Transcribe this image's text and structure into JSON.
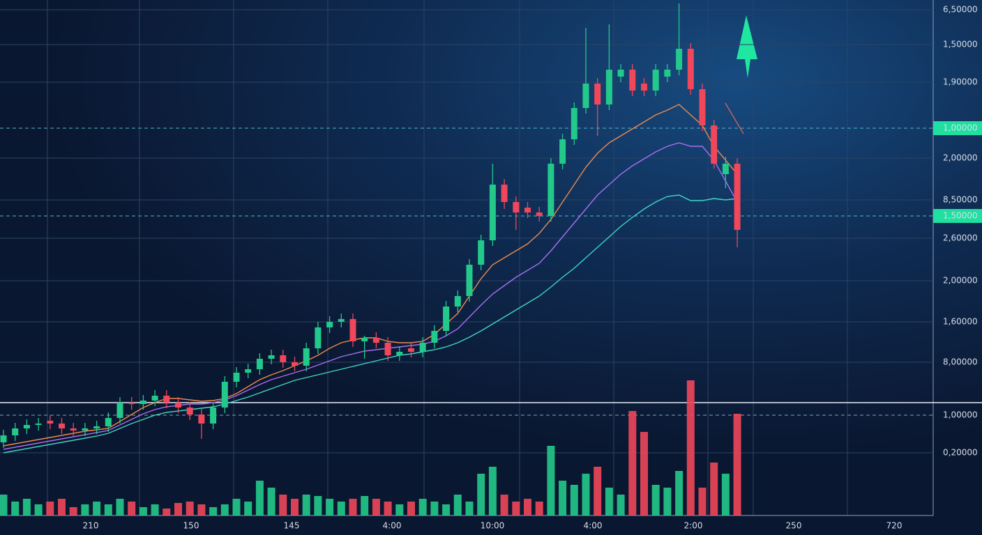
{
  "chart_data": [
    {
      "type": "candlestick",
      "up_color": "#22c98a",
      "down_color": "#f0475a",
      "ylim": [
        0,
        650
      ],
      "yticks": [
        {
          "value": 636,
          "label": "6,50000"
        },
        {
          "value": 586,
          "label": "1,50000"
        },
        {
          "value": 532,
          "label": "1,90000"
        },
        {
          "value": 466,
          "label": "1,00000",
          "highlight": true
        },
        {
          "value": 423,
          "label": "2,00000"
        },
        {
          "value": 363,
          "label": "8,50000"
        },
        {
          "value": 340,
          "label": "1,50000",
          "highlight": true
        },
        {
          "value": 308,
          "label": "2,60000"
        },
        {
          "value": 247,
          "label": "2,00000"
        },
        {
          "value": 188,
          "label": "1,60000"
        },
        {
          "value": 130,
          "label": "8,00000"
        }
      ],
      "x_labels": [
        "210",
        "150",
        "145",
        "4:00",
        "10:00",
        "4:00",
        "2:00",
        "250",
        "720"
      ],
      "grid": true,
      "open": [
        15,
        25,
        35,
        40,
        46,
        42,
        35,
        32,
        35,
        38,
        50,
        72,
        70,
        75,
        82,
        72,
        65,
        55,
        42,
        65,
        102,
        115,
        120,
        135,
        140,
        130,
        125,
        150,
        180,
        188,
        192,
        160,
        165,
        158,
        140,
        150,
        145,
        158,
        175,
        210,
        225,
        270,
        305,
        385,
        360,
        352,
        345,
        340,
        415,
        450,
        495,
        530,
        500,
        540,
        550,
        530,
        520,
        540,
        550,
        580,
        522,
        470,
        400,
        415
      ],
      "high": [
        33,
        43,
        48,
        50,
        54,
        50,
        43,
        43,
        46,
        58,
        80,
        80,
        83,
        90,
        90,
        80,
        73,
        63,
        73,
        110,
        123,
        128,
        143,
        148,
        148,
        138,
        158,
        188,
        196,
        200,
        200,
        168,
        173,
        166,
        153,
        158,
        166,
        183,
        218,
        233,
        278,
        313,
        415,
        393,
        368,
        360,
        353,
        423,
        458,
        503,
        610,
        538,
        615,
        558,
        558,
        538,
        558,
        558,
        645,
        588,
        530,
        478,
        425,
        423
      ],
      "low": [
        7,
        17,
        27,
        32,
        34,
        27,
        24,
        24,
        27,
        30,
        42,
        62,
        62,
        67,
        64,
        57,
        47,
        20,
        34,
        57,
        94,
        107,
        112,
        127,
        122,
        117,
        117,
        142,
        172,
        180,
        152,
        135,
        150,
        132,
        132,
        137,
        137,
        150,
        167,
        202,
        217,
        262,
        297,
        350,
        320,
        337,
        332,
        332,
        407,
        442,
        487,
        455,
        492,
        532,
        512,
        512,
        512,
        532,
        542,
        514,
        462,
        408,
        380,
        295
      ],
      "close": [
        25,
        35,
        40,
        42,
        42,
        35,
        32,
        35,
        38,
        50,
        72,
        70,
        75,
        82,
        72,
        65,
        55,
        42,
        65,
        102,
        115,
        120,
        135,
        140,
        130,
        125,
        150,
        180,
        188,
        192,
        160,
        165,
        158,
        140,
        145,
        145,
        158,
        175,
        210,
        225,
        270,
        305,
        385,
        360,
        345,
        345,
        340,
        415,
        450,
        495,
        530,
        500,
        550,
        550,
        520,
        520,
        550,
        550,
        580,
        522,
        470,
        415,
        415,
        320
      ],
      "series": [
        {
          "color": "#f08a4b",
          "values": [
            10,
            13,
            16,
            19,
            22,
            25,
            28,
            31,
            33,
            35,
            45,
            55,
            65,
            72,
            78,
            78,
            76,
            74,
            75,
            78,
            85,
            95,
            105,
            112,
            118,
            125,
            132,
            140,
            150,
            158,
            162,
            165,
            165,
            160,
            158,
            158,
            160,
            170,
            185,
            200,
            225,
            250,
            270,
            280,
            290,
            300,
            315,
            335,
            360,
            385,
            410,
            430,
            445,
            455,
            465,
            475,
            485,
            492,
            500,
            485,
            470,
            440,
            420,
            400
          ]
        },
        {
          "color": "#a86ff0",
          "values": [
            5,
            8,
            11,
            14,
            17,
            20,
            23,
            26,
            29,
            32,
            40,
            48,
            56,
            62,
            66,
            68,
            70,
            70,
            72,
            76,
            82,
            90,
            98,
            105,
            110,
            115,
            120,
            126,
            132,
            138,
            142,
            146,
            148,
            150,
            152,
            154,
            156,
            160,
            168,
            178,
            195,
            212,
            228,
            240,
            252,
            262,
            272,
            290,
            310,
            330,
            350,
            370,
            385,
            400,
            412,
            422,
            432,
            440,
            445,
            440,
            440,
            420,
            390,
            360
          ]
        },
        {
          "color": "#3fd6c4",
          "values": [
            0,
            3,
            6,
            9,
            12,
            15,
            18,
            21,
            24,
            28,
            35,
            42,
            48,
            54,
            58,
            60,
            62,
            64,
            66,
            70,
            75,
            80,
            86,
            92,
            98,
            104,
            108,
            112,
            116,
            120,
            124,
            128,
            132,
            136,
            140,
            142,
            145,
            148,
            152,
            158,
            166,
            175,
            185,
            195,
            205,
            215,
            225,
            238,
            252,
            265,
            280,
            295,
            310,
            325,
            338,
            350,
            360,
            368,
            370,
            362,
            362,
            365,
            363,
            365
          ]
        }
      ]
    },
    {
      "type": "bar",
      "ylim": [
        0,
        100
      ],
      "yticks": [
        {
          "value": 72,
          "label": "1,00000"
        },
        {
          "value": 45,
          "label": "0,20000"
        }
      ],
      "values": [
        15,
        10,
        12,
        8,
        10,
        12,
        6,
        8,
        10,
        8,
        12,
        10,
        6,
        8,
        5,
        9,
        10,
        8,
        6,
        8,
        12,
        10,
        25,
        20,
        15,
        12,
        15,
        14,
        12,
        10,
        12,
        14,
        12,
        10,
        8,
        10,
        12,
        10,
        8,
        15,
        10,
        30,
        35,
        15,
        10,
        12,
        10,
        50,
        25,
        22,
        30,
        35,
        20,
        15,
        75,
        60,
        22,
        20,
        32,
        97,
        20,
        38,
        30,
        73
      ]
    }
  ]
}
